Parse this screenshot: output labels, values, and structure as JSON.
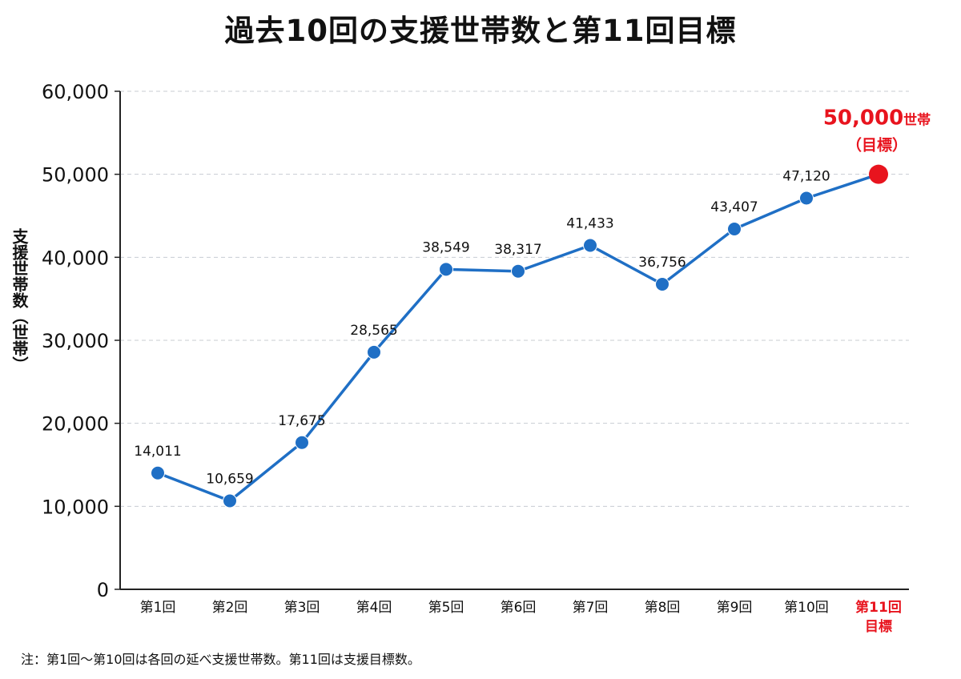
{
  "chart_data": {
    "type": "line",
    "title": "過去10回の支援世帯数と第11回目標",
    "ylabel": "支援世帯数（世帯）",
    "xlabel": "",
    "ylim": [
      0,
      60000
    ],
    "yticks": [
      {
        "value": 0,
        "label": "0"
      },
      {
        "value": 10000,
        "label": "10,000"
      },
      {
        "value": 20000,
        "label": "20,000"
      },
      {
        "value": 30000,
        "label": "30,000"
      },
      {
        "value": 40000,
        "label": "40,000"
      },
      {
        "value": 50000,
        "label": "50,000"
      },
      {
        "value": 60000,
        "label": "60,000"
      }
    ],
    "grid": true,
    "categories": [
      "第1回",
      "第2回",
      "第3回",
      "第4回",
      "第5回",
      "第6回",
      "第7回",
      "第8回",
      "第9回",
      "第10回",
      "第11回\n目標"
    ],
    "values": [
      14011,
      10659,
      17675,
      28565,
      38549,
      38317,
      41433,
      36756,
      43407,
      47120,
      50000
    ],
    "point_labels": [
      "14,011",
      "10,659",
      "17,675",
      "28,565",
      "38,549",
      "38,317",
      "41,433",
      "36,756",
      "43,407",
      "47,120",
      ""
    ],
    "colors": {
      "line": "#1f6fc5",
      "point": "#1f6fc5",
      "target": "#e8141e",
      "grid": "#c8ccd2",
      "axis": "#222222",
      "text": "#111111"
    },
    "target_annotation": {
      "value": "50,000",
      "unit": "世帯",
      "sub": "（目標）"
    },
    "note": "注：第1回〜第10回は各回の延べ支援世帯数。第11回は支援目標数。"
  }
}
